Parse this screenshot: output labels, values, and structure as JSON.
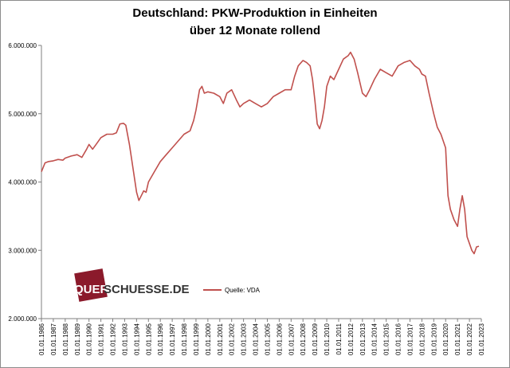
{
  "chart_data": {
    "type": "line",
    "title": "Deutschland: PKW-Produktion in Einheiten",
    "subtitle": "über 12 Monate rollend",
    "y_ticks": [
      "6.000.000",
      "5.000.000",
      "4.000.000",
      "3.000.000",
      "2.000.000"
    ],
    "ylim": [
      2000000,
      6000000
    ],
    "x_ticks": [
      "01.01.1986",
      "01.01.1987",
      "01.01.1988",
      "01.01.1989",
      "01.01.1990",
      "01.01.1991",
      "01.01.1992",
      "01.01.1993",
      "01.01.1994",
      "01.01.1995",
      "01.01.1996",
      "01.01.1997",
      "01.01.1998",
      "01.01.1999",
      "01.01.2000",
      "01.01.2001",
      "01.01.2002",
      "01.01.2003",
      "01.01.2004",
      "01.01.2005",
      "01.01.2006",
      "01.01.2007",
      "01.01.2008",
      "01.01.2009",
      "01.01.2010",
      "01.01.2011",
      "01.01.2012",
      "01.01.2013",
      "01.01.2014",
      "01.01.2015",
      "01.01.2016",
      "01.01.2017",
      "01.01.2018",
      "01.01.2019",
      "01.01.2020",
      "01.01.2021",
      "01.01.2022",
      "01.01.2023"
    ],
    "xlim": [
      1986.0,
      2023.0
    ],
    "grid": false,
    "legend_position": "bottom-center",
    "series": [
      {
        "name": "Quelle: VDA",
        "color": "#c0504d",
        "points": [
          [
            1986.0,
            4150000
          ],
          [
            1986.3,
            4280000
          ],
          [
            1986.6,
            4300000
          ],
          [
            1987.0,
            4310000
          ],
          [
            1987.4,
            4330000
          ],
          [
            1987.8,
            4320000
          ],
          [
            1988.0,
            4350000
          ],
          [
            1988.5,
            4380000
          ],
          [
            1989.0,
            4400000
          ],
          [
            1989.4,
            4360000
          ],
          [
            1989.8,
            4480000
          ],
          [
            1990.0,
            4550000
          ],
          [
            1990.3,
            4480000
          ],
          [
            1990.6,
            4550000
          ],
          [
            1991.0,
            4650000
          ],
          [
            1991.5,
            4700000
          ],
          [
            1992.0,
            4700000
          ],
          [
            1992.3,
            4720000
          ],
          [
            1992.6,
            4850000
          ],
          [
            1992.9,
            4860000
          ],
          [
            1993.1,
            4830000
          ],
          [
            1993.4,
            4550000
          ],
          [
            1993.7,
            4200000
          ],
          [
            1994.0,
            3850000
          ],
          [
            1994.2,
            3730000
          ],
          [
            1994.4,
            3800000
          ],
          [
            1994.6,
            3870000
          ],
          [
            1994.8,
            3850000
          ],
          [
            1995.0,
            4000000
          ],
          [
            1995.5,
            4150000
          ],
          [
            1996.0,
            4300000
          ],
          [
            1996.5,
            4400000
          ],
          [
            1997.0,
            4500000
          ],
          [
            1997.5,
            4600000
          ],
          [
            1998.0,
            4700000
          ],
          [
            1998.5,
            4750000
          ],
          [
            1998.8,
            4900000
          ],
          [
            1999.0,
            5050000
          ],
          [
            1999.3,
            5350000
          ],
          [
            1999.5,
            5400000
          ],
          [
            1999.7,
            5300000
          ],
          [
            2000.0,
            5320000
          ],
          [
            2000.5,
            5300000
          ],
          [
            2001.0,
            5250000
          ],
          [
            2001.3,
            5150000
          ],
          [
            2001.6,
            5300000
          ],
          [
            2002.0,
            5350000
          ],
          [
            2002.4,
            5200000
          ],
          [
            2002.7,
            5100000
          ],
          [
            2003.0,
            5150000
          ],
          [
            2003.5,
            5200000
          ],
          [
            2004.0,
            5150000
          ],
          [
            2004.5,
            5100000
          ],
          [
            2005.0,
            5150000
          ],
          [
            2005.5,
            5250000
          ],
          [
            2006.0,
            5300000
          ],
          [
            2006.5,
            5350000
          ],
          [
            2007.0,
            5350000
          ],
          [
            2007.3,
            5550000
          ],
          [
            2007.6,
            5700000
          ],
          [
            2008.0,
            5780000
          ],
          [
            2008.3,
            5750000
          ],
          [
            2008.6,
            5700000
          ],
          [
            2008.8,
            5500000
          ],
          [
            2009.0,
            5200000
          ],
          [
            2009.2,
            4850000
          ],
          [
            2009.4,
            4780000
          ],
          [
            2009.6,
            4900000
          ],
          [
            2009.8,
            5100000
          ],
          [
            2010.0,
            5400000
          ],
          [
            2010.3,
            5550000
          ],
          [
            2010.6,
            5500000
          ],
          [
            2011.0,
            5650000
          ],
          [
            2011.4,
            5800000
          ],
          [
            2011.8,
            5850000
          ],
          [
            2012.0,
            5900000
          ],
          [
            2012.3,
            5800000
          ],
          [
            2012.6,
            5600000
          ],
          [
            2013.0,
            5300000
          ],
          [
            2013.3,
            5250000
          ],
          [
            2013.6,
            5350000
          ],
          [
            2014.0,
            5500000
          ],
          [
            2014.5,
            5650000
          ],
          [
            2015.0,
            5600000
          ],
          [
            2015.5,
            5550000
          ],
          [
            2016.0,
            5700000
          ],
          [
            2016.5,
            5750000
          ],
          [
            2017.0,
            5780000
          ],
          [
            2017.4,
            5700000
          ],
          [
            2017.8,
            5650000
          ],
          [
            2018.0,
            5580000
          ],
          [
            2018.3,
            5550000
          ],
          [
            2018.6,
            5300000
          ],
          [
            2019.0,
            5000000
          ],
          [
            2019.3,
            4800000
          ],
          [
            2019.6,
            4700000
          ],
          [
            2020.0,
            4500000
          ],
          [
            2020.2,
            3800000
          ],
          [
            2020.4,
            3600000
          ],
          [
            2020.7,
            3450000
          ],
          [
            2021.0,
            3350000
          ],
          [
            2021.2,
            3600000
          ],
          [
            2021.4,
            3800000
          ],
          [
            2021.6,
            3600000
          ],
          [
            2021.8,
            3200000
          ],
          [
            2022.0,
            3100000
          ],
          [
            2022.2,
            3000000
          ],
          [
            2022.4,
            2950000
          ],
          [
            2022.6,
            3050000
          ],
          [
            2022.8,
            3060000
          ]
        ]
      }
    ]
  },
  "logo": {
    "text_boxed": "QUER",
    "text_rest": "SCHUESSE.DE"
  }
}
